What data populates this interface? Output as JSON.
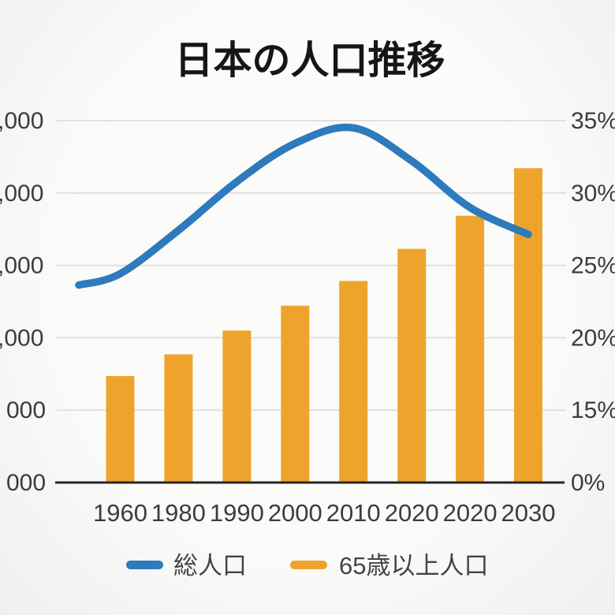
{
  "title": "日本の人口推移",
  "legend": {
    "items": [
      {
        "label": "総人口",
        "color": "#2E7ABD"
      },
      {
        "label": "65歳以上人口",
        "color": "#EEA42C"
      }
    ]
  },
  "left_axis": {
    "visible_labels": [
      ",000",
      ",000",
      ",000",
      ",000",
      "000",
      "000"
    ],
    "note": "tick labels are clipped at the left edge of the image"
  },
  "right_axis": {
    "labels": [
      "35%",
      "30%",
      "25%",
      "20%",
      "15%",
      "0%"
    ]
  },
  "x_axis": {
    "labels": [
      "1960",
      "1980",
      "1990",
      "2000",
      "2010",
      "2020",
      "2020",
      "2030"
    ]
  },
  "colors": {
    "line": "#2E7ABD",
    "bar": "#EEA42C",
    "grid": "#E0E0DF",
    "axis": "#262626",
    "text": "#3C3C3C",
    "title": "#161616",
    "background": "#F8F8F7"
  },
  "chart_data": {
    "type": "bar+line combo",
    "title": "日本の人口推移",
    "categories": [
      "1960",
      "1980",
      "1990",
      "2000",
      "2010",
      "2020",
      "2020",
      "2030"
    ],
    "series": [
      {
        "name": "総人口",
        "type": "line",
        "color": "#2E7ABD",
        "axis": "left (labels clipped)",
        "values_pct": [
          20.2,
          24.4,
          29.1,
          32.8,
          34.3,
          31.1,
          26.6,
          24.0
        ],
        "leadin_pct": 19.1
      },
      {
        "name": "65歳以上人口",
        "type": "bar",
        "color": "#EEA42C",
        "axis": "right",
        "values_pct": [
          10.3,
          12.4,
          14.7,
          17.1,
          19.5,
          22.6,
          25.8,
          30.4
        ]
      }
    ],
    "right_axis_tick_labels": [
      "35%",
      "30%",
      "25%",
      "20%",
      "15%",
      "0%"
    ],
    "left_axis_tick_labels_visible": [
      ",000",
      ",000",
      ",000",
      ",000",
      "000",
      "000"
    ],
    "axis_quirks": "six equally spaced gridlines; right axis jumps from 15% to 0%; category 2020 appears twice; left axis labels clipped at image edge",
    "grid": true,
    "legend_position": "bottom",
    "ylim_right": [
      0,
      35
    ]
  }
}
